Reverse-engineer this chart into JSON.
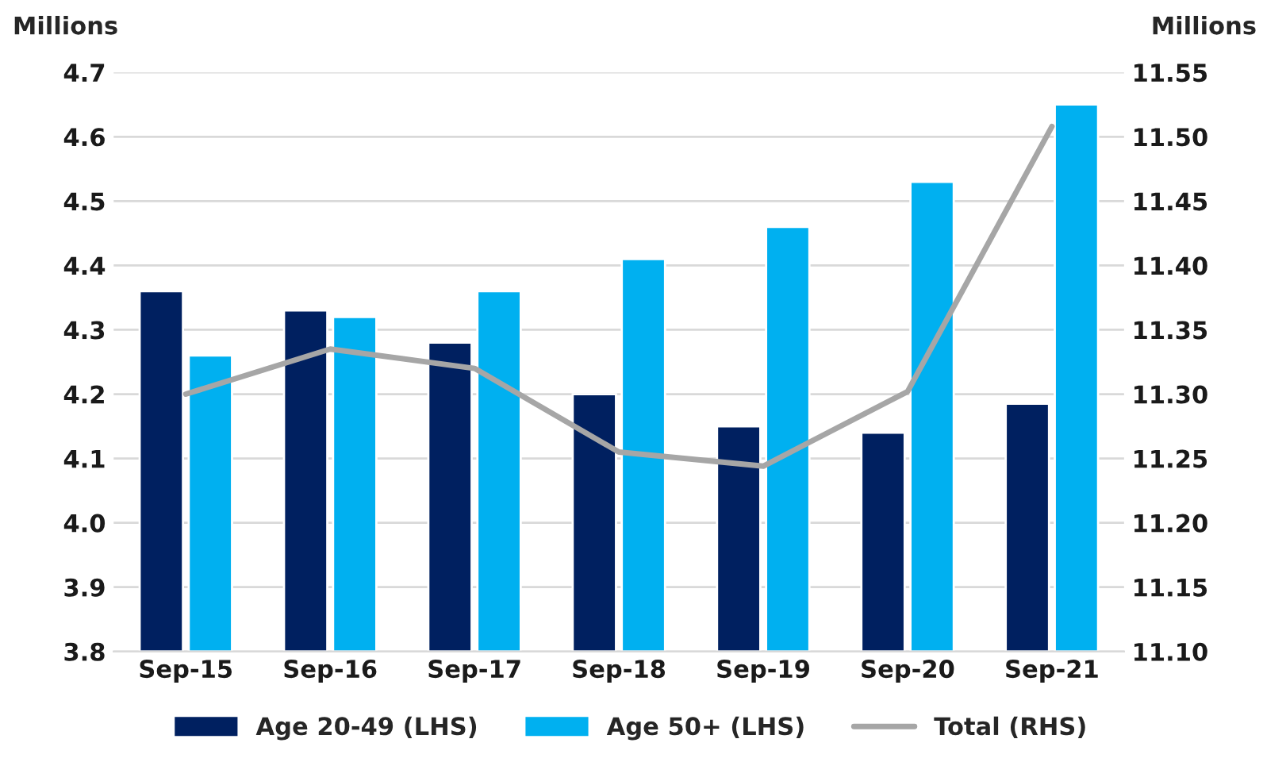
{
  "chart_data": {
    "type": "bar",
    "ylabel": "Millions",
    "y2label": "Millions",
    "categories": [
      "Sep-15",
      "Sep-16",
      "Sep-17",
      "Sep-18",
      "Sep-19",
      "Sep-20",
      "Sep-21"
    ],
    "series": [
      {
        "name": "Age 20-49 (LHS)",
        "color": "#002060",
        "values": [
          4.36,
          4.33,
          4.28,
          4.2,
          4.15,
          4.14,
          4.185
        ]
      },
      {
        "name": "Age 50+ (LHS)",
        "color": "#00b0f0",
        "values": [
          4.26,
          4.32,
          4.36,
          4.41,
          4.46,
          4.53,
          4.65
        ]
      },
      {
        "name": "Total (RHS)",
        "type": "line",
        "axis": "y2",
        "color": "#a6a6a6",
        "values": [
          11.3,
          11.335,
          11.32,
          11.255,
          11.244,
          11.302,
          11.508
        ]
      }
    ],
    "ylim": [
      3.8,
      4.7
    ],
    "yticks": [
      3.8,
      3.9,
      {
        "value": 4.0,
        "label": "4.0"
      },
      4.1,
      4.2,
      4.3,
      4.4,
      4.5,
      4.6,
      4.7
    ],
    "y2lim": [
      11.1,
      11.55
    ],
    "y2ticks": [
      {
        "value": 11.1,
        "label": "11.10"
      },
      11.15,
      {
        "value": 11.2,
        "label": "11.20"
      },
      11.25,
      {
        "value": 11.3,
        "label": "11.30"
      },
      11.35,
      {
        "value": 11.4,
        "label": "11.40"
      },
      11.45,
      {
        "value": 11.5,
        "label": "11.50"
      },
      11.55
    ],
    "grid": "y",
    "legend": "bottom",
    "marker": "none",
    "line_style": "solid"
  }
}
